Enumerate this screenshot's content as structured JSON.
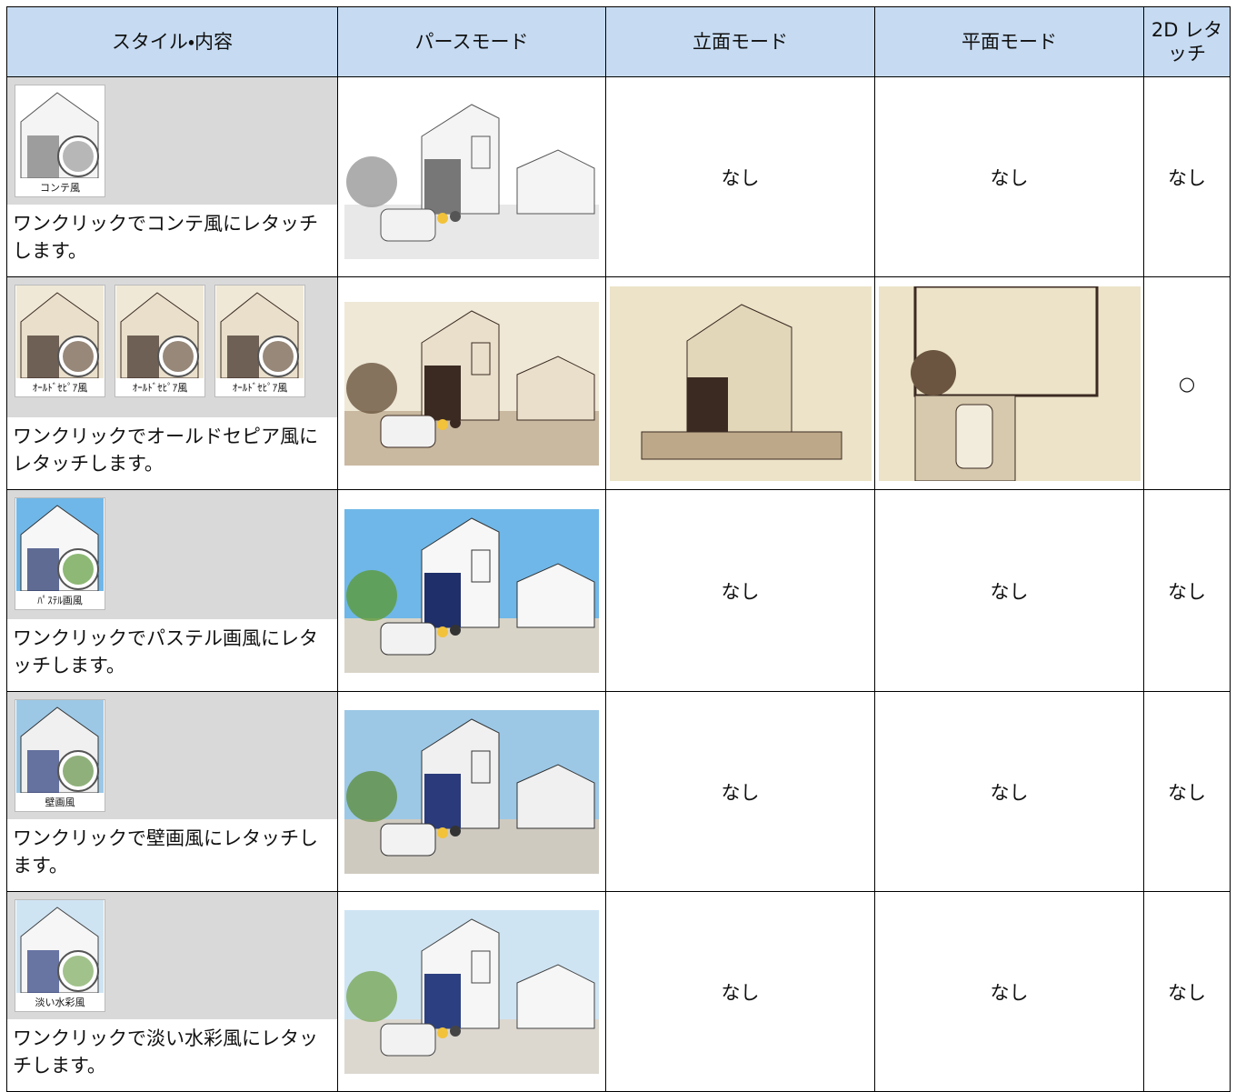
{
  "table": {
    "header": [
      "スタイル・内容",
      "パースモード",
      "立面モード",
      "平面モード",
      "2D レタッチ"
    ],
    "rows": [
      {
        "icons": [
          "コンテ風"
        ],
        "description": "ワンクリックでコンテ風にレタッチします。",
        "elevation": "なし",
        "plan": "なし",
        "retouch_2d": "なし"
      },
      {
        "icons": [
          "ｵｰﾙﾄﾞｾﾋﾟｱ風",
          "ｵｰﾙﾄﾞｾﾋﾟｱ風",
          "ｵｰﾙﾄﾞｾﾋﾟｱ風"
        ],
        "description": "ワンクリックでオールドセピア風にレタッチします。",
        "retouch_2d": "○"
      },
      {
        "icons": [
          "ﾊﾟｽﾃﾙ画風"
        ],
        "description": "ワンクリックでパステル画風にレタッチします。",
        "elevation": "なし",
        "plan": "なし",
        "retouch_2d": "なし"
      },
      {
        "icons": [
          "壁画風"
        ],
        "description": "ワンクリックで壁画風にレタッチします。",
        "elevation": "なし",
        "plan": "なし",
        "retouch_2d": "なし"
      },
      {
        "icons": [
          "淡い水彩風"
        ],
        "description": "ワンクリックで淡い水彩風にレタッチします。",
        "elevation": "なし",
        "plan": "なし",
        "retouch_2d": "なし"
      }
    ]
  }
}
